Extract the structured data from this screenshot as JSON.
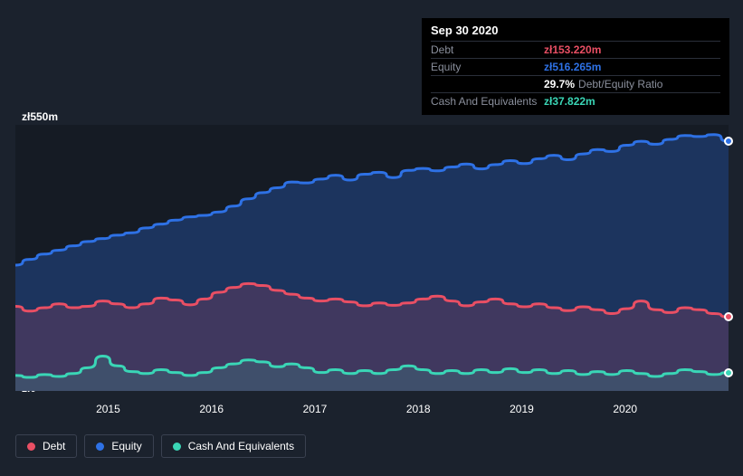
{
  "chart": {
    "type": "area",
    "background_color": "#1b222d",
    "plot_background": "#151b24",
    "ymin": 0,
    "ymax": 550,
    "ylabel_top": "zł550m",
    "ylabel_bottom": "zł0",
    "label_fontsize": 12,
    "label_color": "#ffffff",
    "x_ticks": [
      "2015",
      "2016",
      "2017",
      "2018",
      "2019",
      "2020"
    ],
    "x_tick_positions_pct": [
      13.0,
      27.5,
      42.0,
      56.5,
      71.0,
      85.5
    ],
    "series": [
      {
        "name": "Equity",
        "color": "#2e71e5",
        "fill_opacity": 0.3,
        "line_width": 3,
        "values": [
          260,
          272,
          283,
          291,
          300,
          309,
          315,
          322,
          327,
          337,
          345,
          353,
          360,
          363,
          370,
          382,
          397,
          410,
          420,
          432,
          430,
          438,
          446,
          436,
          448,
          452,
          441,
          456,
          460,
          455,
          463,
          469,
          459,
          468,
          476,
          470,
          480,
          487,
          478,
          490,
          499,
          495,
          508,
          516,
          510,
          520,
          528,
          526,
          530,
          516
        ]
      },
      {
        "name": "Debt",
        "color": "#e94f64",
        "fill_opacity": 0.18,
        "line_width": 3,
        "values": [
          175,
          165,
          172,
          180,
          172,
          175,
          186,
          180,
          172,
          180,
          192,
          188,
          178,
          190,
          204,
          214,
          222,
          218,
          208,
          200,
          192,
          186,
          190,
          184,
          176,
          182,
          177,
          182,
          190,
          196,
          186,
          176,
          184,
          190,
          180,
          174,
          180,
          172,
          166,
          174,
          168,
          160,
          170,
          186,
          168,
          162,
          172,
          168,
          160,
          153
        ]
      },
      {
        "name": "Cash And Equivalents",
        "color": "#3ad6b6",
        "fill_opacity": 0.15,
        "line_width": 3,
        "values": [
          32,
          28,
          34,
          30,
          36,
          48,
          72,
          52,
          40,
          36,
          44,
          38,
          32,
          38,
          48,
          56,
          64,
          60,
          50,
          56,
          48,
          38,
          44,
          36,
          42,
          36,
          44,
          52,
          44,
          36,
          42,
          36,
          44,
          38,
          46,
          38,
          44,
          36,
          42,
          34,
          40,
          34,
          42,
          36,
          30,
          36,
          44,
          40,
          34,
          38
        ]
      }
    ],
    "marker_index": 49,
    "marker_dots": [
      {
        "color": "#2e71e5",
        "y": 516
      },
      {
        "color": "#e94f64",
        "y": 153
      },
      {
        "color": "#3ad6b6",
        "y": 38
      }
    ]
  },
  "tooltip": {
    "title": "Sep 30 2020",
    "rows": [
      {
        "label": "Debt",
        "value": "zł153.220m",
        "color": "#e94f64"
      },
      {
        "label": "Equity",
        "value": "zł516.265m",
        "color": "#2e71e5"
      },
      {
        "label": "",
        "value": "29.7%",
        "color": "#ffffff",
        "suffix": "Debt/Equity Ratio"
      },
      {
        "label": "Cash And Equivalents",
        "value": "zł37.822m",
        "color": "#3ad6b6"
      }
    ]
  },
  "legend": {
    "items": [
      {
        "label": "Debt",
        "color": "#e94f64"
      },
      {
        "label": "Equity",
        "color": "#2e71e5"
      },
      {
        "label": "Cash And Equivalents",
        "color": "#3ad6b6"
      }
    ],
    "border_color": "#3a4150"
  }
}
